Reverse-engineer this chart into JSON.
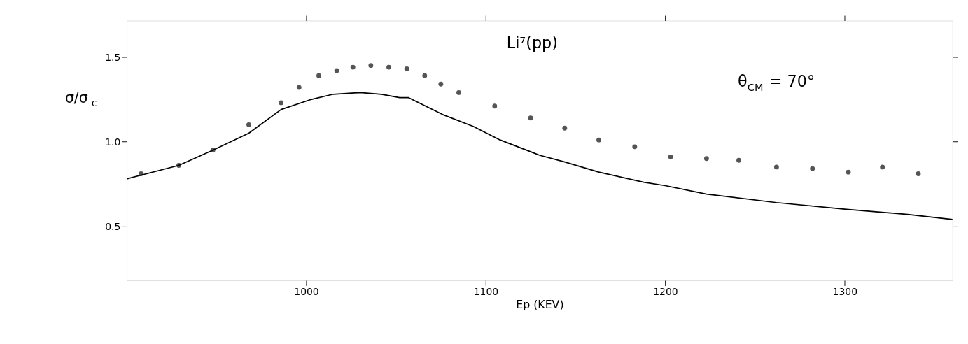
{
  "chart_data": {
    "type": "scatter",
    "title": "Li⁷(pp)",
    "xlabel": "Ep (KEV)",
    "ylabel": "σ/σ$_{c}$",
    "annotations": [
      "θ$_{CM}$ = 70°"
    ],
    "xlim": [
      900,
      1360
    ],
    "ylim": [
      0.18,
      1.715
    ],
    "xticks": [
      1000,
      1100,
      1200,
      1300
    ],
    "yticks": [
      {
        "value": 0.5,
        "label": "0.5"
      },
      {
        "value": 1,
        "label": "1.0"
      },
      {
        "value": 1.5,
        "label": "1.5"
      }
    ],
    "grid": false,
    "marker": "circle",
    "series": [
      {
        "color": "#555555",
        "x": [
          908,
          929,
          948,
          968,
          986,
          996,
          1007,
          1017,
          1026,
          1036,
          1046,
          1056,
          1066,
          1075,
          1085,
          1105,
          1125,
          1144,
          1163,
          1183,
          1203,
          1223,
          1241,
          1262,
          1282,
          1302,
          1321,
          1341
        ],
        "values": [
          0.81,
          0.86,
          0.95,
          1.1,
          1.23,
          1.32,
          1.39,
          1.42,
          1.44,
          1.45,
          1.44,
          1.43,
          1.39,
          1.34,
          1.29,
          1.21,
          1.14,
          1.08,
          1.01,
          0.97,
          0.91,
          0.9,
          0.89,
          0.85,
          0.84,
          0.82,
          0.85,
          0.81
        ]
      },
      {
        "type": "line",
        "color": "#000000",
        "marker": "none",
        "line_style": "solid",
        "x": [
          900,
          929,
          948,
          968,
          986,
          1003,
          1015,
          1030,
          1042,
          1052,
          1057,
          1076,
          1093,
          1108,
          1130,
          1144,
          1163,
          1188,
          1200,
          1223,
          1262,
          1301,
          1335,
          1360
        ],
        "values": [
          0.78,
          0.86,
          0.95,
          1.05,
          1.19,
          1.25,
          1.28,
          1.29,
          1.28,
          1.26,
          1.26,
          1.16,
          1.09,
          1.01,
          0.92,
          0.88,
          0.82,
          0.76,
          0.74,
          0.69,
          0.64,
          0.6,
          0.57,
          0.54
        ]
      }
    ]
  }
}
